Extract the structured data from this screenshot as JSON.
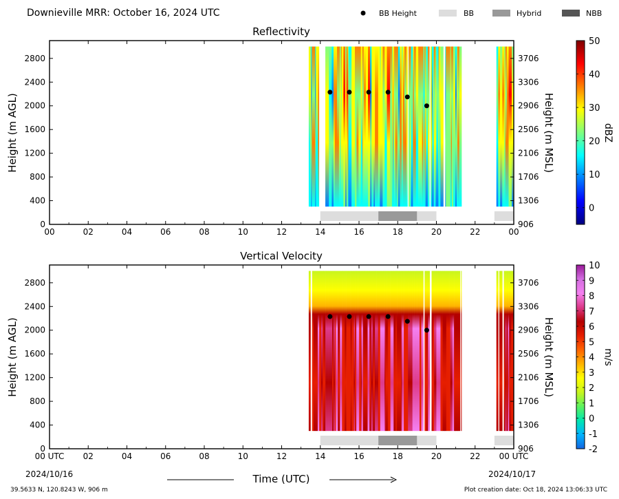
{
  "header": {
    "title": "Downieville MRR:  October 16, 2024 UTC",
    "legend": [
      {
        "label": "BB Height",
        "kind": "dot",
        "color": "#000000"
      },
      {
        "label": "BB",
        "kind": "rect",
        "color": "#dddddd"
      },
      {
        "label": "Hybrid",
        "kind": "rect",
        "color": "#999999"
      },
      {
        "label": "NBB",
        "kind": "rect",
        "color": "#555555"
      }
    ]
  },
  "footer": {
    "location": "39.5633 N, 120.8243 W, 906 m",
    "created": "Plot creation date: Oct 18, 2024 13:06:33 UTC",
    "xlabel": "Time (UTC)",
    "start_date": "2024/10/16",
    "end_date": "2024/10/17"
  },
  "chart_data": [
    {
      "type": "heatmap",
      "title": "Reflectivity",
      "xlabel": "Time (UTC)",
      "ylabel": "Height (m AGL)",
      "ylabel_right": "Height (m MSL)",
      "x_ticks": [
        "00",
        "02",
        "04",
        "06",
        "08",
        "10",
        "12",
        "14",
        "16",
        "18",
        "20",
        "22",
        "00"
      ],
      "xlim": [
        0,
        24
      ],
      "ylim": [
        0,
        3100
      ],
      "y_ticks": [
        0,
        400,
        800,
        1200,
        1600,
        2000,
        2400,
        2800
      ],
      "y_ticks_right": [
        906,
        1306,
        1706,
        2106,
        2506,
        2906,
        3306,
        3706
      ],
      "data_extent_hours": [
        [
          13.4,
          21.3
        ],
        [
          23.1,
          24.0
        ]
      ],
      "data_height_range": [
        300,
        3000
      ],
      "colorbar": {
        "label": "dBZ",
        "min": -5,
        "max": 50,
        "ticks": [
          0,
          10,
          20,
          30,
          40,
          50
        ],
        "colors": [
          "#00007f",
          "#0000ff",
          "#007fff",
          "#00ffff",
          "#7fff7f",
          "#ffff00",
          "#ff7f00",
          "#ff0000",
          "#7f0000"
        ]
      },
      "bb_height": [
        {
          "t": 14.5,
          "h": 2230
        },
        {
          "t": 15.5,
          "h": 2230
        },
        {
          "t": 16.5,
          "h": 2230
        },
        {
          "t": 17.5,
          "h": 2230
        },
        {
          "t": 18.5,
          "h": 2150
        },
        {
          "t": 19.5,
          "h": 2000
        }
      ],
      "bb_classes": [
        {
          "start": 14.0,
          "end": 17.0,
          "class": "BB"
        },
        {
          "start": 17.0,
          "end": 19.0,
          "class": "Hybrid"
        },
        {
          "start": 19.0,
          "end": 20.0,
          "class": "BB"
        },
        {
          "start": 23.0,
          "end": 24.0,
          "class": "BB"
        }
      ]
    },
    {
      "type": "heatmap",
      "title": "Vertical Velocity",
      "xlabel": "Time (UTC)",
      "ylabel": "Height (m AGL)",
      "ylabel_right": "Height (m MSL)",
      "x_ticks": [
        "00 UTC",
        "02",
        "04",
        "06",
        "08",
        "10",
        "12",
        "14",
        "16",
        "18",
        "20",
        "22",
        "00 UTC"
      ],
      "xlim": [
        0,
        24
      ],
      "ylim": [
        0,
        3100
      ],
      "y_ticks": [
        0,
        400,
        800,
        1200,
        1600,
        2000,
        2400,
        2800
      ],
      "y_ticks_right": [
        906,
        1306,
        1706,
        2106,
        2506,
        2906,
        3306,
        3706
      ],
      "data_extent_hours": [
        [
          13.4,
          21.3
        ],
        [
          23.1,
          24.0
        ]
      ],
      "data_height_range": [
        300,
        3000
      ],
      "colorbar": {
        "label": "m/s",
        "min": -2,
        "max": 10,
        "ticks": [
          -2,
          -1,
          0,
          1,
          2,
          3,
          4,
          5,
          6,
          7,
          8,
          9,
          10
        ],
        "colors": [
          "#1565e0",
          "#00b4ff",
          "#00e6b0",
          "#5ef25e",
          "#c8f51e",
          "#ffff00",
          "#ffb400",
          "#ff6400",
          "#e61e00",
          "#b40000",
          "#dd3a8a",
          "#f47ff0",
          "#d36ee0",
          "#9a1a9a"
        ]
      },
      "bb_height": [
        {
          "t": 14.5,
          "h": 2230
        },
        {
          "t": 15.5,
          "h": 2230
        },
        {
          "t": 16.5,
          "h": 2230
        },
        {
          "t": 17.5,
          "h": 2230
        },
        {
          "t": 18.5,
          "h": 2150
        },
        {
          "t": 19.5,
          "h": 2000
        }
      ],
      "bb_classes": [
        {
          "start": 14.0,
          "end": 17.0,
          "class": "BB"
        },
        {
          "start": 17.0,
          "end": 19.0,
          "class": "Hybrid"
        },
        {
          "start": 19.0,
          "end": 20.0,
          "class": "BB"
        },
        {
          "start": 23.0,
          "end": 24.0,
          "class": "BB"
        }
      ]
    }
  ]
}
